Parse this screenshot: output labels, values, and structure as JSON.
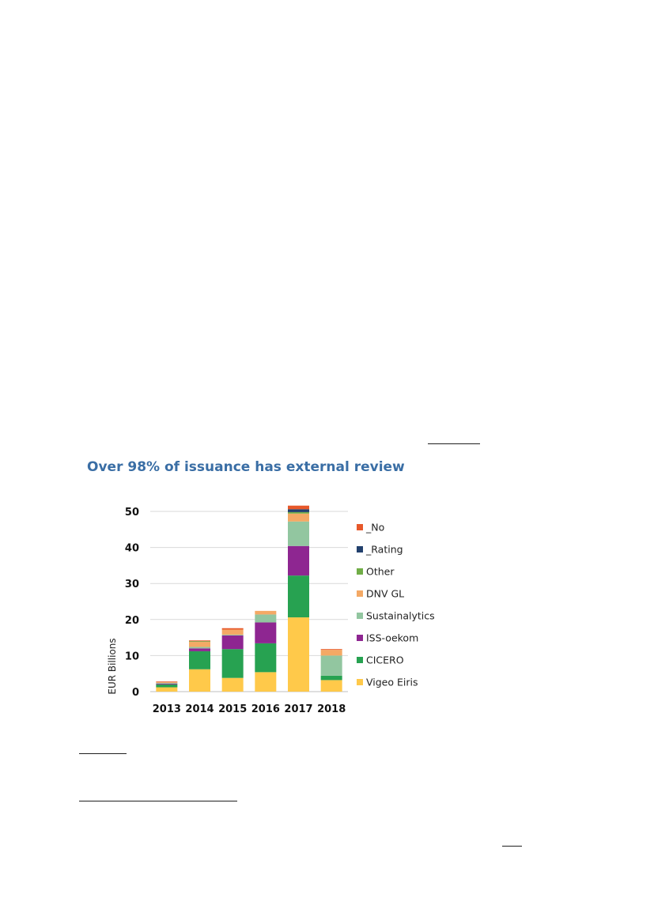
{
  "chart_data": {
    "type": "bar",
    "stacked": true,
    "title": "Over 98% of issuance has external review",
    "ylabel": "EUR Billions",
    "xlabel": "",
    "ylim": [
      0,
      52
    ],
    "yticks": [
      0,
      10,
      20,
      30,
      40,
      50
    ],
    "grid": true,
    "legend_position": "right",
    "categories": [
      "2013",
      "2014",
      "2015",
      "2016",
      "2017",
      "2018"
    ],
    "series": [
      {
        "name": "Vigeo Eiris",
        "color": "#ffc94a",
        "values": [
          1.2,
          6.2,
          3.8,
          5.4,
          20.6,
          3.2
        ]
      },
      {
        "name": "CICERO",
        "color": "#27a251",
        "values": [
          0.8,
          5.0,
          8.0,
          8.0,
          11.6,
          1.2
        ]
      },
      {
        "name": "ISS-oekom",
        "color": "#8e2691",
        "values": [
          0.2,
          0.8,
          3.8,
          5.8,
          8.2,
          0.0
        ]
      },
      {
        "name": "Sustainalytics",
        "color": "#92c6a0",
        "values": [
          0.2,
          0.4,
          0.2,
          2.2,
          6.8,
          5.6
        ]
      },
      {
        "name": "DNV GL",
        "color": "#f4a965",
        "values": [
          0.2,
          1.4,
          1.4,
          1.0,
          2.2,
          1.6
        ]
      },
      {
        "name": "Other",
        "color": "#71ad47",
        "values": [
          0.0,
          0.2,
          0.0,
          0.0,
          0.4,
          0.0
        ]
      },
      {
        "name": "_Rating",
        "color": "#22406d",
        "values": [
          0.0,
          0.0,
          0.0,
          0.0,
          0.8,
          0.0
        ]
      },
      {
        "name": "_No",
        "color": "#e7582a",
        "values": [
          0.2,
          0.2,
          0.4,
          0.0,
          1.0,
          0.2
        ]
      }
    ]
  }
}
